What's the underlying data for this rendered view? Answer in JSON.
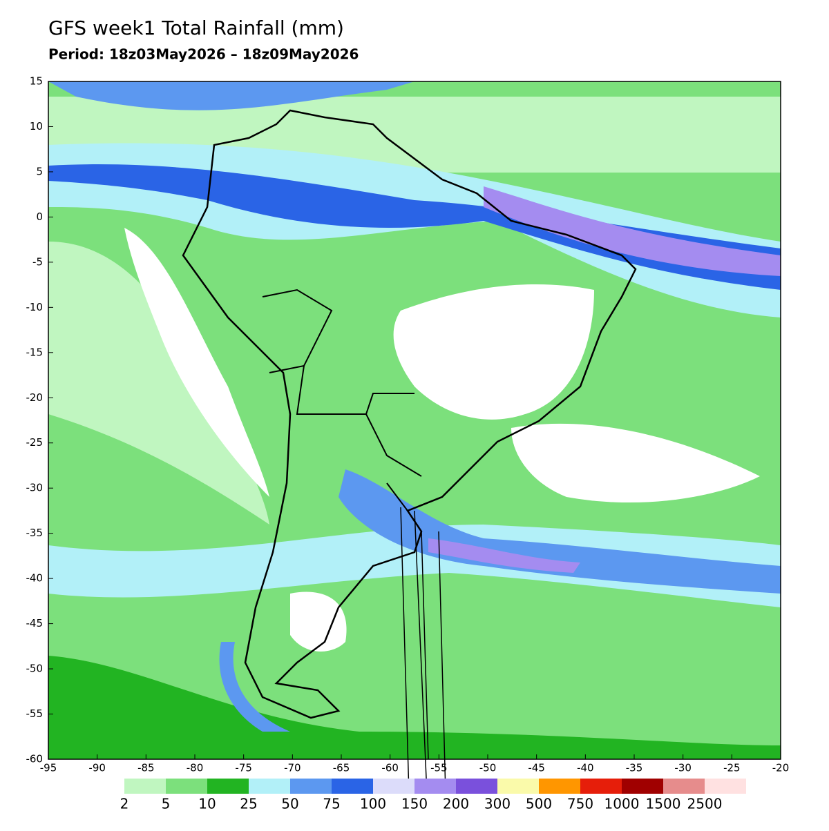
{
  "title": "GFS week1 Total Rainfall (mm)",
  "period": "Period: 18z03May2026 – 18z09May2026",
  "map": {
    "xlim": [
      -95,
      -20
    ],
    "ylim": [
      -60,
      15
    ],
    "xticks": [
      -95,
      -90,
      -85,
      -80,
      -75,
      -70,
      -65,
      -60,
      -55,
      -50,
      -45,
      -40,
      -35,
      -30,
      -25,
      -20
    ],
    "yticks": [
      15,
      10,
      5,
      0,
      -5,
      -10,
      -15,
      -20,
      -25,
      -30,
      -35,
      -40,
      -45,
      -50,
      -55,
      -60
    ]
  },
  "colorbar": {
    "levels": [
      2,
      5,
      10,
      25,
      50,
      75,
      100,
      150,
      200,
      300,
      500,
      750,
      1000,
      1500,
      2500
    ],
    "colors": [
      "#c0f6c0",
      "#7ce07c",
      "#22b422",
      "#b2f0f8",
      "#5c98f0",
      "#2a64e6",
      "#dcdcfa",
      "#a48cf0",
      "#7a50dc",
      "#fafaaa",
      "#ff9600",
      "#e61e0a",
      "#a00000",
      "#e68c8c",
      "#ffe1e1"
    ]
  }
}
